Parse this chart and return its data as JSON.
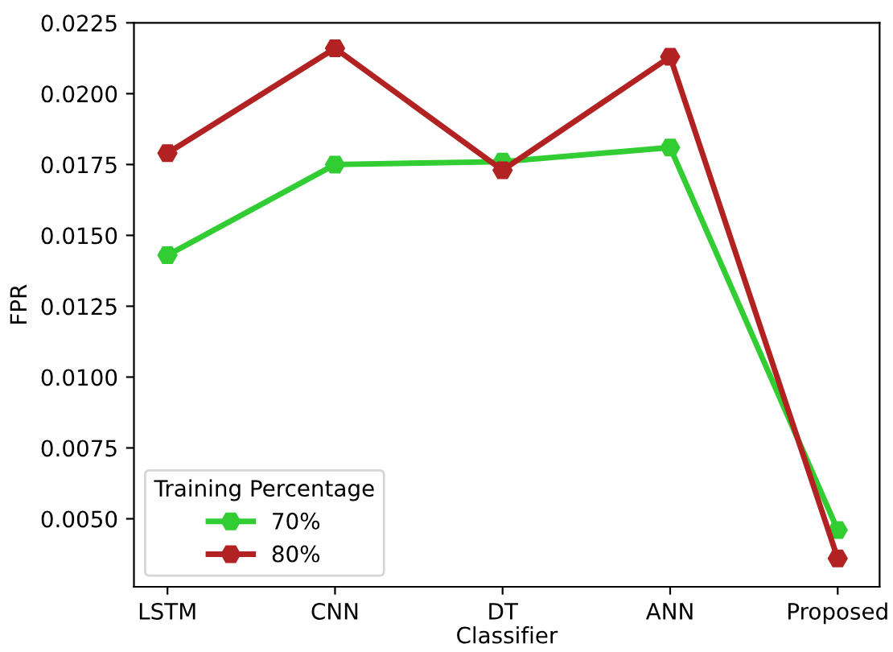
{
  "chart_data": {
    "type": "line",
    "xlabel": "Classifier",
    "ylabel": "FPR",
    "legend_title": "Training Percentage",
    "categories": [
      "LSTM",
      "CNN",
      "DT",
      "ANN",
      "Proposed"
    ],
    "series": [
      {
        "name": "70%",
        "color": "#32cd32",
        "values": [
          0.0143,
          0.0175,
          0.0176,
          0.0181,
          0.0046
        ]
      },
      {
        "name": "80%",
        "color": "#b22222",
        "values": [
          0.0179,
          0.0216,
          0.0173,
          0.0213,
          0.0036
        ]
      }
    ],
    "ylim": [
      0.0026,
      0.0225
    ],
    "yticks": [
      {
        "value": 0.005,
        "label": "0.0050"
      },
      {
        "value": 0.0075,
        "label": "0.0075"
      },
      {
        "value": 0.01,
        "label": "0.0100"
      },
      {
        "value": 0.0125,
        "label": "0.0125"
      },
      {
        "value": 0.015,
        "label": "0.0150"
      },
      {
        "value": 0.0175,
        "label": "0.0175"
      },
      {
        "value": 0.02,
        "label": "0.0200"
      },
      {
        "value": 0.0225,
        "label": "0.0225"
      }
    ],
    "marker": "circle",
    "line_style": "solid",
    "legend": "bottom left",
    "grid": false
  }
}
